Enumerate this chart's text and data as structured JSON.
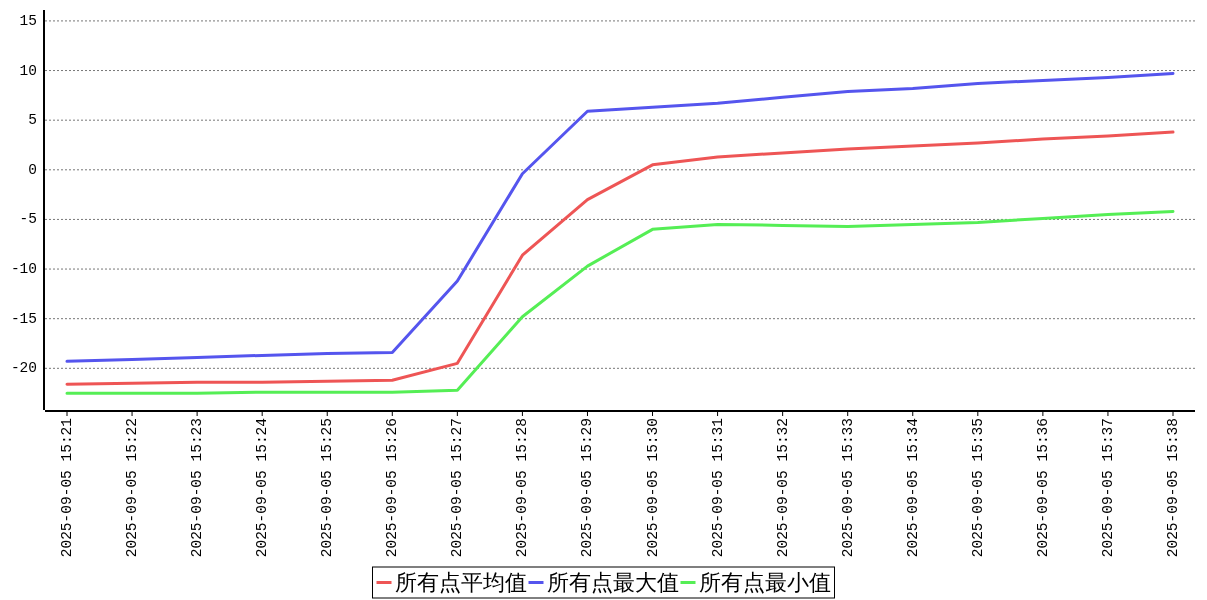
{
  "chart_data": {
    "type": "line",
    "categories": [
      "2025-09-05 15:21",
      "2025-09-05 15:22",
      "2025-09-05 15:23",
      "2025-09-05 15:24",
      "2025-09-05 15:25",
      "2025-09-05 15:26",
      "2025-09-05 15:27",
      "2025-09-05 15:28",
      "2025-09-05 15:29",
      "2025-09-05 15:30",
      "2025-09-05 15:31",
      "2025-09-05 15:32",
      "2025-09-05 15:33",
      "2025-09-05 15:34",
      "2025-09-05 15:35",
      "2025-09-05 15:36",
      "2025-09-05 15:37",
      "2025-09-05 15:38"
    ],
    "series": [
      {
        "name": "所有点平均值",
        "color": "#ee5555",
        "values": [
          -21.6,
          -21.5,
          -21.4,
          -21.4,
          -21.3,
          -21.2,
          -19.5,
          -8.6,
          -3.0,
          0.5,
          1.3,
          1.7,
          2.1,
          2.4,
          2.7,
          3.1,
          3.4,
          3.8
        ]
      },
      {
        "name": "所有点最大值",
        "color": "#5555ee",
        "values": [
          -19.3,
          -19.1,
          -18.9,
          -18.7,
          -18.5,
          -18.4,
          -11.2,
          -0.4,
          5.9,
          6.3,
          6.7,
          7.3,
          7.9,
          8.2,
          8.7,
          9.0,
          9.3,
          9.7
        ]
      },
      {
        "name": "所有点最小值",
        "color": "#55ee55",
        "values": [
          -22.5,
          -22.5,
          -22.5,
          -22.4,
          -22.4,
          -22.4,
          -22.2,
          -14.8,
          -9.7,
          -6.0,
          -5.5,
          -5.6,
          -5.7,
          -5.5,
          -5.3,
          -4.9,
          -4.5,
          -4.2
        ]
      }
    ],
    "ylim": [
      -24.2,
      16.1
    ],
    "yticks": [
      -20,
      -15,
      -10,
      -5,
      0,
      5,
      10,
      15
    ],
    "grid": "y",
    "legend": "bottom",
    "line_style": "solid"
  }
}
